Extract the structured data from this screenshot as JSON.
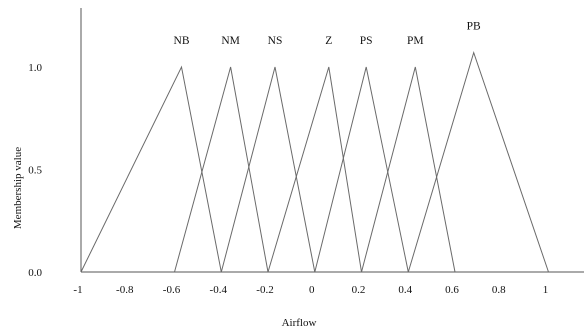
{
  "chart_data": {
    "type": "line",
    "xlabel": "Airflow",
    "ylabel": "Membership value",
    "xlim": [
      -1,
      1.15
    ],
    "ylim": [
      0,
      1.25
    ],
    "x_ticks": [
      {
        "value": -1,
        "label": "-1"
      },
      {
        "value": -0.8,
        "label": "-0.8"
      },
      {
        "value": -0.6,
        "label": "-0.6"
      },
      {
        "value": -0.4,
        "label": "-0.4"
      },
      {
        "value": -0.2,
        "label": "-0.2"
      },
      {
        "value": 0,
        "label": "0"
      },
      {
        "value": 0.2,
        "label": "0.2"
      },
      {
        "value": 0.4,
        "label": "0.4"
      },
      {
        "value": 0.6,
        "label": "0.6"
      },
      {
        "value": 0.8,
        "label": "0.8"
      },
      {
        "value": 1,
        "label": "1"
      }
    ],
    "y_ticks": [
      {
        "value": 0,
        "label": "0.0"
      },
      {
        "value": 0.5,
        "label": "0.5"
      },
      {
        "value": 1.0,
        "label": "1.0"
      }
    ],
    "series": [
      {
        "name": "NB",
        "points": [
          [
            -1,
            0
          ],
          [
            -0.57,
            1.0
          ],
          [
            -0.4,
            0
          ]
        ]
      },
      {
        "name": "NM",
        "points": [
          [
            -0.6,
            0
          ],
          [
            -0.36,
            1.0
          ],
          [
            -0.2,
            0
          ]
        ]
      },
      {
        "name": "NS",
        "points": [
          [
            -0.4,
            0
          ],
          [
            -0.17,
            1.0
          ],
          [
            0.0,
            0
          ]
        ]
      },
      {
        "name": "Z",
        "points": [
          [
            -0.2,
            0
          ],
          [
            0.06,
            1.0
          ],
          [
            0.2,
            0
          ]
        ]
      },
      {
        "name": "PS",
        "points": [
          [
            0.0,
            0
          ],
          [
            0.22,
            1.0
          ],
          [
            0.4,
            0
          ]
        ]
      },
      {
        "name": "PM",
        "points": [
          [
            0.2,
            0
          ],
          [
            0.43,
            1.0
          ],
          [
            0.6,
            0
          ]
        ]
      },
      {
        "name": "PB",
        "points": [
          [
            0.4,
            0
          ],
          [
            0.68,
            1.07
          ],
          [
            1.0,
            0
          ]
        ]
      }
    ],
    "grid": false,
    "legend": "none"
  }
}
